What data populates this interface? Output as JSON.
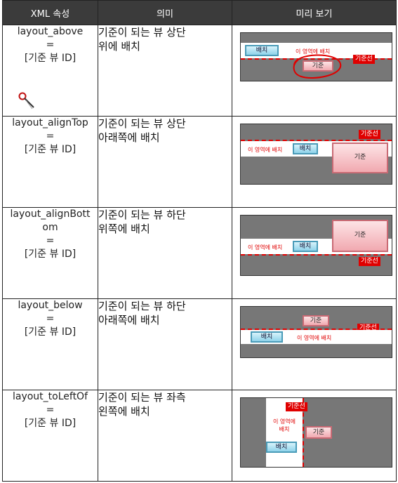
{
  "header": {
    "attribute": "XML 속성",
    "meaning": "의미",
    "preview": "미리 보기"
  },
  "rows": [
    {
      "attr_lines": [
        "layout_above",
        "=",
        "[기준 뷰 ID]"
      ],
      "meaning_lines": [
        "기준이 되는 뷰 상단",
        "위에 배치"
      ],
      "preview": {
        "placed": "배치",
        "zone": "이 영역에 배치",
        "anchor": "기준",
        "line_tag": "기준선"
      }
    },
    {
      "attr_lines": [
        "layout_alignTop",
        "=",
        "[기준 뷰 ID]"
      ],
      "meaning_lines": [
        "기준이 되는 뷰 상단",
        "아래쪽에 배치"
      ],
      "preview": {
        "placed": "배치",
        "zone": "이 영역에 배치",
        "anchor": "기준",
        "line_tag": "기준선"
      }
    },
    {
      "attr_lines": [
        "layout_alignBott",
        "om",
        "=",
        "[기준 뷰 ID]"
      ],
      "meaning_lines": [
        "기준이 되는 뷰 하단",
        "위쪽에 배치"
      ],
      "preview": {
        "placed": "배치",
        "zone": "이 영역에 배치",
        "anchor": "기준",
        "line_tag": "기준선"
      }
    },
    {
      "attr_lines": [
        "layout_below",
        "=",
        "[기준 뷰 ID]"
      ],
      "meaning_lines": [
        "기준이 되는 뷰 하단",
        "아래쪽에 배치"
      ],
      "preview": {
        "placed": "배치",
        "zone": "이 영역에 배치",
        "anchor": "기준",
        "line_tag": "기준선"
      }
    },
    {
      "attr_lines": [
        "layout_toLeftOf",
        "=",
        "[기준 뷰 ID]"
      ],
      "meaning_lines": [
        "기준이 되는 뷰 좌측",
        "왼쪽에 배치"
      ],
      "preview": {
        "placed": "배치",
        "zone_lines": [
          "이 영역에",
          "배치"
        ],
        "anchor": "기준",
        "line_tag": "기준선"
      }
    }
  ],
  "colors": {
    "header_bg": "#3b3b3b",
    "baseline_red": "#e00000",
    "placed_button": "#8fd3ea",
    "anchor_button": "#f1a9b0",
    "preview_bg": "#777777"
  },
  "icons": [
    "magnifier-cursor-icon"
  ]
}
